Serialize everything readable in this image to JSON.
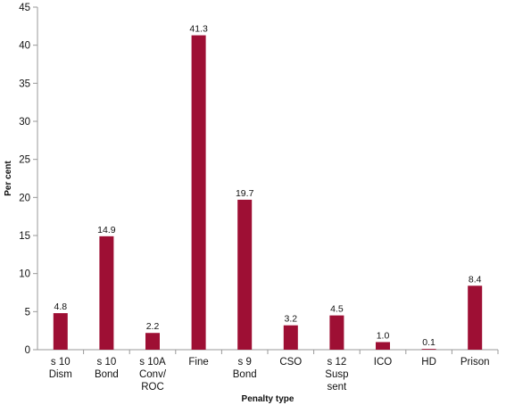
{
  "chart_data": {
    "type": "bar",
    "xlabel": "Penalty type",
    "ylabel": "Per cent",
    "ylim": [
      0,
      45
    ],
    "yticks": [
      0,
      5,
      10,
      15,
      20,
      25,
      30,
      35,
      40,
      45
    ],
    "grid": false,
    "categories": [
      [
        "s 10",
        "Dism"
      ],
      [
        "s 10",
        "Bond"
      ],
      [
        "s 10A",
        "Conv/",
        "ROC"
      ],
      [
        "Fine"
      ],
      [
        "s 9",
        "Bond"
      ],
      [
        "CSO"
      ],
      [
        "s 12",
        "Susp",
        "sent"
      ],
      [
        "ICO"
      ],
      [
        "HD"
      ],
      [
        "Prison"
      ]
    ],
    "values": [
      4.8,
      14.9,
      2.2,
      41.3,
      19.7,
      3.2,
      4.5,
      1.0,
      0.1,
      8.4
    ],
    "value_labels": [
      "4.8",
      "14.9",
      "2.2",
      "41.3",
      "19.7",
      "3.2",
      "4.5",
      "1.0",
      "0.1",
      "8.4"
    ],
    "bar_color": "#9e0f34",
    "axis_color": "#999999"
  }
}
